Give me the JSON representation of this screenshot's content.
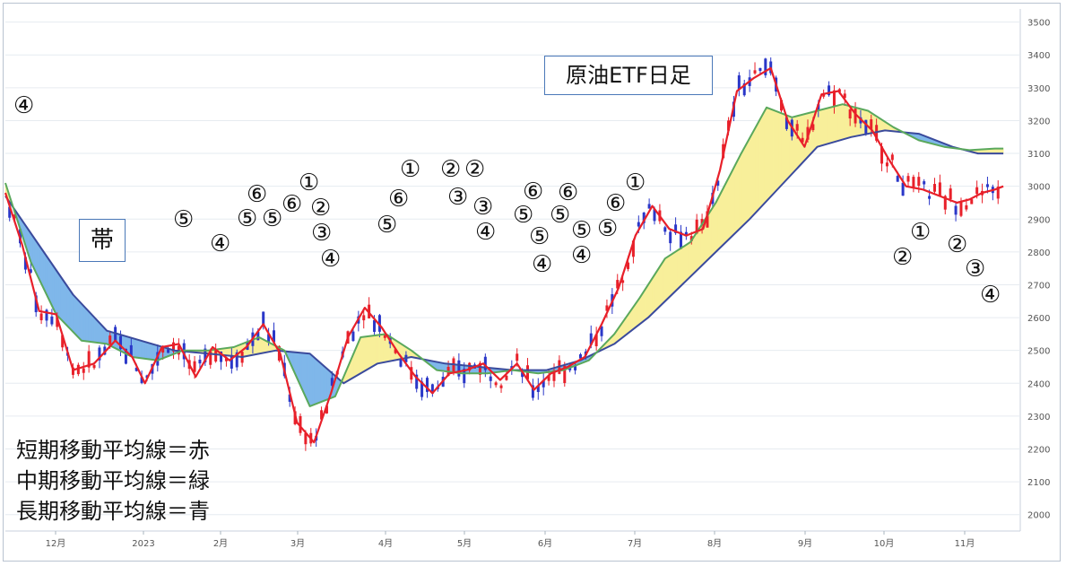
{
  "chart_data": {
    "type": "line",
    "title": "原油ETF日足",
    "band_label": "帯",
    "legend": [
      "短期移動平均線＝赤",
      "中期移動平均線＝緑",
      "長期移動平均線＝青"
    ],
    "y_ticks": [
      2000,
      2100,
      2200,
      2300,
      2400,
      2500,
      2600,
      2700,
      2800,
      2900,
      3000,
      3100,
      3200,
      3300,
      3400,
      3500
    ],
    "ylim": [
      1950,
      3540
    ],
    "x_tick_labels": [
      "12月",
      "2023",
      "2月",
      "3月",
      "4月",
      "5月",
      "6月",
      "7月",
      "8月",
      "9月",
      "10月",
      "11月"
    ],
    "colors": {
      "short": "#e8202a",
      "mid": "#5aa85c",
      "long": "#3a4a9c",
      "band_down": "#7fb7ea",
      "band_up": "#f8ef9a",
      "candle_up": "#e8202a",
      "candle_down": "#2a37c8"
    },
    "series": [
      {
        "name": "短期移動平均線＝赤",
        "x": [
          0,
          4,
          8,
          12,
          16,
          21,
          26,
          30,
          33,
          37,
          41,
          45,
          49,
          53,
          57,
          61,
          65,
          69,
          73,
          77,
          81,
          85,
          89,
          93,
          97,
          101,
          105,
          109,
          113,
          117,
          121,
          125,
          129,
          133,
          137,
          141,
          145,
          149,
          153,
          157,
          161,
          165,
          169,
          173,
          177,
          181,
          185,
          189,
          193,
          197,
          201,
          205,
          209,
          213,
          217,
          221,
          225,
          228,
          231,
          234,
          236
        ],
        "values": [
          2980,
          2820,
          2620,
          2610,
          2440,
          2460,
          2530,
          2480,
          2400,
          2510,
          2520,
          2420,
          2510,
          2470,
          2510,
          2580,
          2490,
          2280,
          2220,
          2370,
          2540,
          2630,
          2570,
          2490,
          2420,
          2370,
          2430,
          2440,
          2460,
          2410,
          2460,
          2380,
          2430,
          2450,
          2480,
          2580,
          2690,
          2850,
          2940,
          2870,
          2850,
          2870,
          3050,
          3290,
          3330,
          3360,
          3200,
          3120,
          3280,
          3290,
          3220,
          3170,
          3080,
          3000,
          2990,
          2970,
          2950,
          2960,
          2980,
          2990,
          3000
        ]
      },
      {
        "name": "中期移動平均線＝緑",
        "x": [
          0,
          6,
          12,
          18,
          24,
          30,
          36,
          42,
          48,
          54,
          60,
          66,
          72,
          78,
          84,
          90,
          96,
          102,
          108,
          114,
          120,
          126,
          132,
          138,
          144,
          150,
          156,
          162,
          168,
          174,
          180,
          186,
          192,
          198,
          204,
          210,
          216,
          222,
          228,
          234,
          236
        ],
        "values": [
          3010,
          2770,
          2610,
          2530,
          2520,
          2480,
          2470,
          2500,
          2500,
          2510,
          2540,
          2500,
          2330,
          2360,
          2540,
          2550,
          2500,
          2440,
          2430,
          2430,
          2440,
          2430,
          2440,
          2470,
          2550,
          2660,
          2780,
          2830,
          2950,
          3100,
          3240,
          3210,
          3230,
          3250,
          3230,
          3180,
          3140,
          3120,
          3110,
          3115,
          3115
        ]
      },
      {
        "name": "長期移動平均線＝青",
        "x": [
          0,
          8,
          16,
          24,
          32,
          40,
          48,
          56,
          64,
          72,
          80,
          88,
          96,
          104,
          112,
          120,
          128,
          136,
          144,
          152,
          160,
          168,
          176,
          184,
          192,
          200,
          208,
          216,
          224,
          230,
          236
        ],
        "values": [
          2970,
          2820,
          2670,
          2560,
          2530,
          2500,
          2490,
          2480,
          2500,
          2490,
          2400,
          2460,
          2480,
          2460,
          2450,
          2440,
          2440,
          2470,
          2520,
          2600,
          2700,
          2800,
          2900,
          3010,
          3120,
          3150,
          3170,
          3160,
          3120,
          3100,
          3100
        ]
      }
    ],
    "annotations": [
      {
        "text": "④",
        "x": 15,
        "y": 118
      },
      {
        "text": "⑤",
        "x": 193,
        "y": 245
      },
      {
        "text": "④",
        "x": 234,
        "y": 272
      },
      {
        "text": "⑥",
        "x": 275,
        "y": 217
      },
      {
        "text": "⑤",
        "x": 264,
        "y": 244
      },
      {
        "text": "⑤",
        "x": 292,
        "y": 244
      },
      {
        "text": "⑥",
        "x": 314,
        "y": 228
      },
      {
        "text": "①",
        "x": 333,
        "y": 204
      },
      {
        "text": "②",
        "x": 346,
        "y": 232
      },
      {
        "text": "③",
        "x": 347,
        "y": 260
      },
      {
        "text": "④",
        "x": 357,
        "y": 289
      },
      {
        "text": "①",
        "x": 446,
        "y": 189
      },
      {
        "text": "⑥",
        "x": 433,
        "y": 222
      },
      {
        "text": "⑤",
        "x": 420,
        "y": 251
      },
      {
        "text": "②",
        "x": 491,
        "y": 189
      },
      {
        "text": "②",
        "x": 518,
        "y": 189
      },
      {
        "text": "③",
        "x": 499,
        "y": 220
      },
      {
        "text": "③",
        "x": 527,
        "y": 231
      },
      {
        "text": "④",
        "x": 530,
        "y": 259
      },
      {
        "text": "⑥",
        "x": 583,
        "y": 214
      },
      {
        "text": "⑤",
        "x": 572,
        "y": 240
      },
      {
        "text": "⑤",
        "x": 590,
        "y": 264
      },
      {
        "text": "④",
        "x": 593,
        "y": 295
      },
      {
        "text": "⑥",
        "x": 622,
        "y": 215
      },
      {
        "text": "⑤",
        "x": 613,
        "y": 240
      },
      {
        "text": "⑤",
        "x": 637,
        "y": 257
      },
      {
        "text": "⑤",
        "x": 666,
        "y": 255
      },
      {
        "text": "④",
        "x": 637,
        "y": 285
      },
      {
        "text": "⑥",
        "x": 675,
        "y": 227
      },
      {
        "text": "①",
        "x": 697,
        "y": 204
      },
      {
        "text": "①",
        "x": 1015,
        "y": 259
      },
      {
        "text": "②",
        "x": 995,
        "y": 287
      },
      {
        "text": "②",
        "x": 1056,
        "y": 273
      },
      {
        "text": "③",
        "x": 1076,
        "y": 300
      },
      {
        "text": "④",
        "x": 1093,
        "y": 329
      }
    ]
  }
}
